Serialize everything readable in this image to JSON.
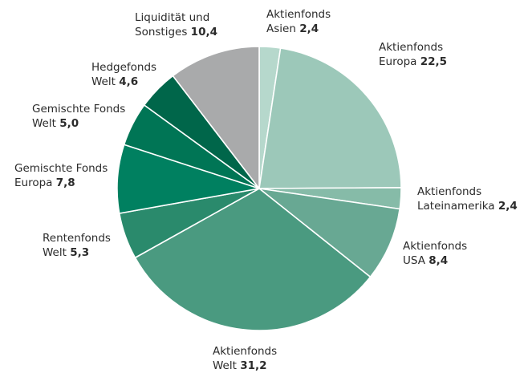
{
  "chart_data": {
    "type": "pie",
    "slices": [
      {
        "label": [
          "Aktienfonds",
          "Asien"
        ],
        "value": 2.4,
        "display": "2,4",
        "color": "#b6d8cc"
      },
      {
        "label": [
          "Aktienfonds",
          "Europa"
        ],
        "value": 22.5,
        "display": "22,5",
        "color": "#9cc8b9"
      },
      {
        "label": [
          "Aktienfonds",
          "Lateinamerika"
        ],
        "value": 2.4,
        "display": "2,4",
        "color": "#86bba8"
      },
      {
        "label": [
          "Aktienfonds",
          "USA"
        ],
        "value": 8.4,
        "display": "8,4",
        "color": "#68a893"
      },
      {
        "label": [
          "Aktienfonds",
          "Welt"
        ],
        "value": 31.2,
        "display": "31,2",
        "color": "#4a9a80"
      },
      {
        "label": [
          "Rentenfonds",
          "Welt"
        ],
        "value": 5.3,
        "display": "5,3",
        "color": "#2a8a6c"
      },
      {
        "label": [
          "Gemischte Fonds",
          "Europa"
        ],
        "value": 7.8,
        "display": "7,8",
        "color": "#008060"
      },
      {
        "label": [
          "Gemischte Fonds",
          "Welt"
        ],
        "value": 5.0,
        "display": "5,0",
        "color": "#007555"
      },
      {
        "label": [
          "Hedgefonds",
          "Welt"
        ],
        "value": 4.6,
        "display": "4,6",
        "color": "#00664a"
      },
      {
        "label": [
          "Liquidität und",
          "Sonstiges"
        ],
        "value": 10.4,
        "display": "10,4",
        "color": "#a9aaab"
      }
    ],
    "legend": "none",
    "start": "top (12 o'clock), clockwise"
  }
}
